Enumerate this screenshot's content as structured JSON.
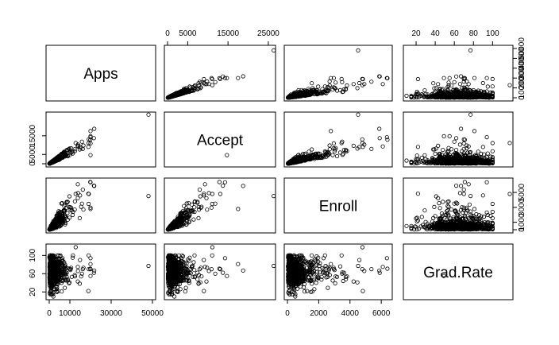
{
  "chart_data": {
    "type": "scatter-matrix",
    "variables": [
      "Apps",
      "Accept",
      "Enroll",
      "Grad.Rate"
    ],
    "grid": false,
    "point_style": "open-circle",
    "colors": {
      "foreground": "#000000",
      "background": "#ffffff"
    },
    "axes": {
      "Apps": {
        "range": [
          0,
          50000
        ],
        "ticks": [
          0,
          10000,
          30000,
          50000
        ],
        "tick_labels": [
          "0",
          "10000",
          "30000",
          "50000"
        ],
        "side": "bottom"
      },
      "Accept": {
        "range": [
          0,
          26000
        ],
        "ticks": [
          0,
          5000,
          15000,
          25000
        ],
        "tick_labels": [
          "0",
          "5000",
          "15000",
          "25000"
        ],
        "side": "top"
      },
      "Enroll": {
        "range": [
          0,
          6500
        ],
        "ticks": [
          0,
          2000,
          4000,
          6000
        ],
        "tick_labels": [
          "0",
          "2000",
          "4000",
          "6000"
        ],
        "side": "bottom"
      },
      "Grad.Rate": {
        "range": [
          10,
          118
        ],
        "ticks": [
          20,
          40,
          60,
          80,
          100
        ],
        "tick_labels": [
          "20",
          "40",
          "60",
          "80",
          "100"
        ],
        "side": "top"
      }
    },
    "row_axes": {
      "Apps": {
        "ticks": [
          0,
          10000,
          20000,
          30000,
          40000,
          50000
        ],
        "tick_labels": [
          "0",
          "10000",
          "20000",
          "30000",
          "40000",
          "50000"
        ],
        "side": "right"
      },
      "Accept": {
        "ticks": [
          0,
          5000,
          15000
        ],
        "tick_labels": [
          "0",
          "5000",
          "15000"
        ],
        "side": "left"
      },
      "Enroll": {
        "ticks": [
          0,
          1000,
          3000,
          5000
        ],
        "tick_labels": [
          "0",
          "1000",
          "3000",
          "5000"
        ],
        "side": "right"
      },
      "Grad.Rate": {
        "ticks": [
          20,
          60,
          100
        ],
        "tick_labels": [
          "20",
          "60",
          "100"
        ],
        "side": "left"
      }
    },
    "n_points": 777,
    "outliers": [
      {
        "Apps": 48094,
        "Accept": 26330,
        "Enroll": 4520,
        "Grad.Rate": 77
      },
      {
        "Apps": 21804,
        "Accept": 18744,
        "Enroll": 5874,
        "Grad.Rate": 67
      },
      {
        "Apps": 19873,
        "Accept": 12860,
        "Enroll": 6392,
        "Grad.Rate": 71
      },
      {
        "Apps": 19152,
        "Accept": 13078,
        "Enroll": 4790,
        "Grad.Rate": 70
      },
      {
        "Apps": 21653,
        "Accept": 13720,
        "Enroll": 5900,
        "Grad.Rate": 62
      },
      {
        "Apps": 12809,
        "Accept": 11116,
        "Enroll": 4800,
        "Grad.Rate": 118
      },
      {
        "Apps": 15849,
        "Accept": 11840,
        "Enroll": 3500,
        "Grad.Rate": 60
      },
      {
        "Apps": 13865,
        "Accept": 9300,
        "Enroll": 6100,
        "Grad.Rate": 75
      },
      {
        "Apps": 14939,
        "Accept": 9000,
        "Enroll": 4600,
        "Grad.Rate": 90
      },
      {
        "Apps": 11500,
        "Accept": 6700,
        "Enroll": 2400,
        "Grad.Rate": 100
      },
      {
        "Apps": 2000,
        "Accept": 1700,
        "Enroll": 500,
        "Grad.Rate": 10
      },
      {
        "Apps": 900,
        "Accept": 700,
        "Enroll": 300,
        "Grad.Rate": 15
      }
    ]
  }
}
